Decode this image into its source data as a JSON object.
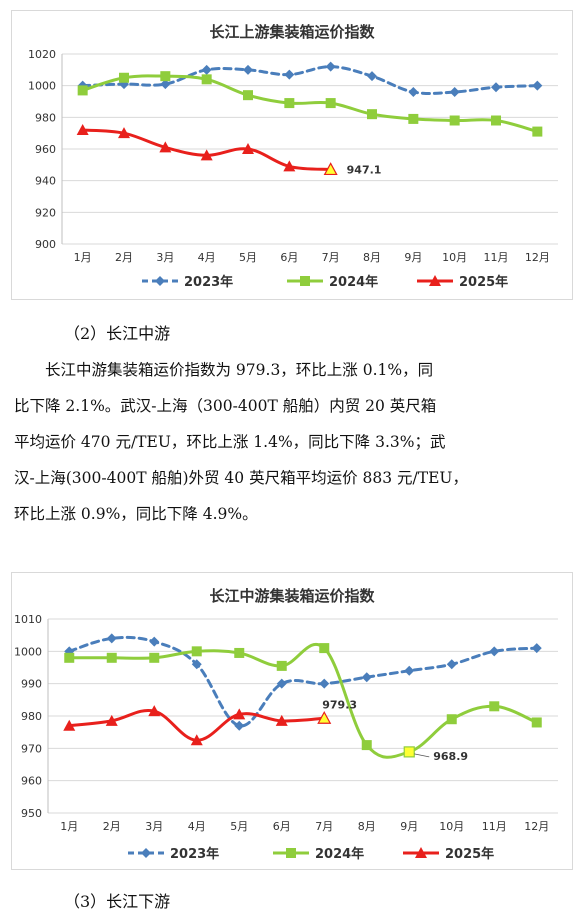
{
  "charts": [
    {
      "title": "长江上游集装箱运价指数",
      "chart_data": {
        "type": "line",
        "categories": [
          "1月",
          "2月",
          "3月",
          "4月",
          "5月",
          "6月",
          "7月",
          "8月",
          "9月",
          "10月",
          "11月",
          "12月"
        ],
        "ylim": [
          900,
          1020
        ],
        "yticks": [
          900,
          920,
          940,
          960,
          980,
          1000,
          1020
        ],
        "grid": true,
        "legend": "bottom",
        "series": [
          {
            "name": "2023年",
            "color": "#4a7ebb",
            "style": "dashed",
            "marker": "diamond",
            "values": [
              1000,
              1001,
              1001,
              1010,
              1010,
              1007,
              1012,
              1006,
              996,
              996,
              999,
              1000
            ]
          },
          {
            "name": "2024年",
            "color": "#8fcd3c",
            "style": "solid",
            "marker": "square",
            "values": [
              997,
              1005,
              1006,
              1004,
              994,
              989,
              989,
              982,
              979,
              978,
              978,
              971
            ]
          },
          {
            "name": "2025年",
            "color": "#e8201c",
            "style": "solid",
            "marker": "triangle",
            "values": [
              972,
              970,
              961,
              956,
              960,
              949,
              947.1,
              null,
              null,
              null,
              null,
              null
            ]
          }
        ],
        "annotations": [
          {
            "series": 2,
            "index": 6,
            "text": "947.1"
          }
        ]
      }
    },
    {
      "title": "长江中游集装箱运价指数",
      "chart_data": {
        "type": "line",
        "categories": [
          "1月",
          "2月",
          "3月",
          "4月",
          "5月",
          "6月",
          "7月",
          "8月",
          "9月",
          "10月",
          "11月",
          "12月"
        ],
        "ylim": [
          950,
          1010
        ],
        "yticks": [
          950,
          960,
          970,
          980,
          990,
          1000,
          1010
        ],
        "grid": true,
        "legend": "bottom",
        "series": [
          {
            "name": "2023年",
            "color": "#4a7ebb",
            "style": "dashed",
            "marker": "diamond",
            "values": [
              1000,
              1004,
              1003,
              996,
              977,
              990,
              990,
              992,
              994,
              996,
              1000,
              1001
            ]
          },
          {
            "name": "2024年",
            "color": "#8fcd3c",
            "style": "solid",
            "marker": "square",
            "values": [
              998,
              998,
              998,
              1000,
              999.5,
              995.5,
              1001,
              971,
              968.9,
              979,
              983,
              978
            ]
          },
          {
            "name": "2025年",
            "color": "#e8201c",
            "style": "solid",
            "marker": "triangle",
            "values": [
              977,
              978.5,
              981.5,
              972.5,
              980.5,
              978.5,
              979.3,
              null,
              null,
              null,
              null,
              null
            ]
          }
        ],
        "annotations": [
          {
            "series": 2,
            "index": 6,
            "text": "979.3"
          },
          {
            "series": 1,
            "index": 8,
            "text": "968.9"
          }
        ]
      }
    }
  ],
  "text": {
    "heading_mid": "（2）长江中游",
    "para_lines": [
      "长江中游集装箱运价指数为 979.3，环比上涨 0.1%，同",
      "比下降 2.1%。武汉-上海（300-400T 船舶）内贸 20 英尺箱",
      "平均运价 470 元/TEU，环比上涨 1.4%，同比下降 3.3%；武",
      "汉-上海(300-400T 船舶)外贸 40 英尺箱平均运价 883 元/TEU，",
      "环比上涨 0.9%，同比下降 4.9%。"
    ],
    "heading_low": "（3）长江下游"
  }
}
